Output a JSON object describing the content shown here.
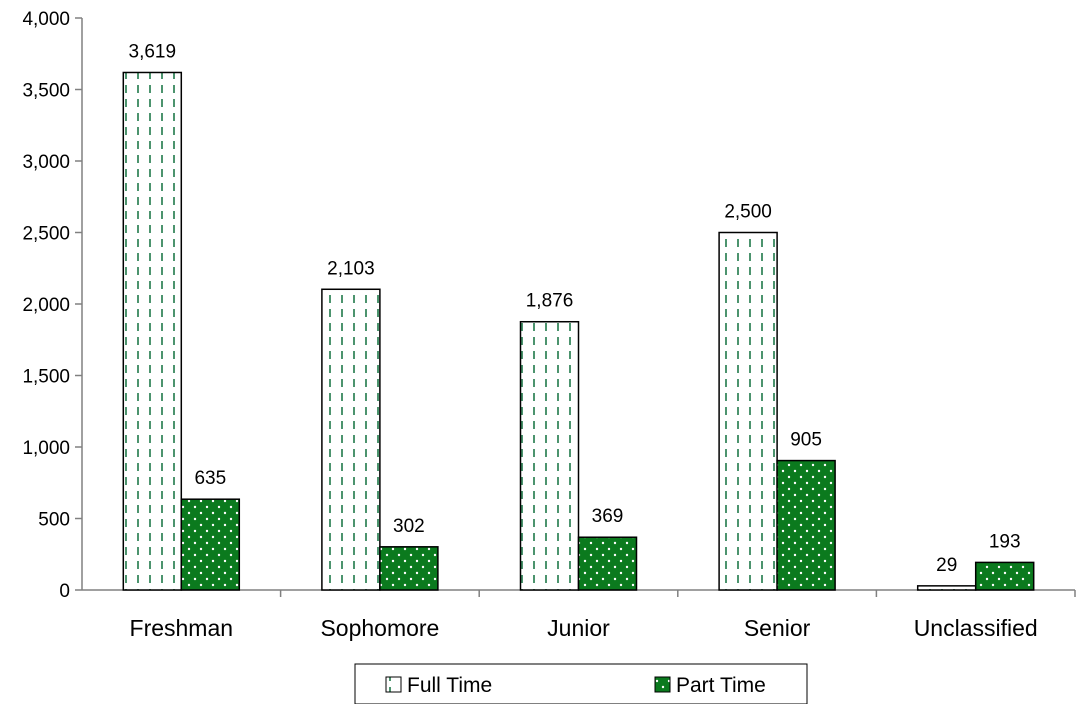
{
  "chart_data": {
    "type": "bar",
    "categories": [
      "Freshman",
      "Sophomore",
      "Junior",
      "Senior",
      "Unclassified"
    ],
    "series": [
      {
        "name": "Full Time",
        "values": [
          3619,
          2103,
          1876,
          2500,
          29
        ],
        "labels": [
          "3,619",
          "2,103",
          "1,876",
          "2,500",
          "29"
        ],
        "color": "#ffffff",
        "pattern_color": "#1f7a4a"
      },
      {
        "name": "Part Time",
        "values": [
          635,
          302,
          369,
          905,
          193
        ],
        "labels": [
          "635",
          "302",
          "369",
          "905",
          "193"
        ],
        "color": "#0b7a1e",
        "pattern_color": "#ffffff"
      }
    ],
    "ylim": [
      0,
      4000
    ],
    "yticks": [
      0,
      500,
      1000,
      1500,
      2000,
      2500,
      3000,
      3500,
      4000
    ],
    "ytick_labels": [
      "0",
      "500",
      "1,000",
      "1,500",
      "2,000",
      "2,500",
      "3,000",
      "3,500",
      "4,000"
    ],
    "grid": false,
    "legend": {
      "placement": "bottom-center",
      "entries": [
        "Full Time",
        "Part Time"
      ]
    }
  }
}
